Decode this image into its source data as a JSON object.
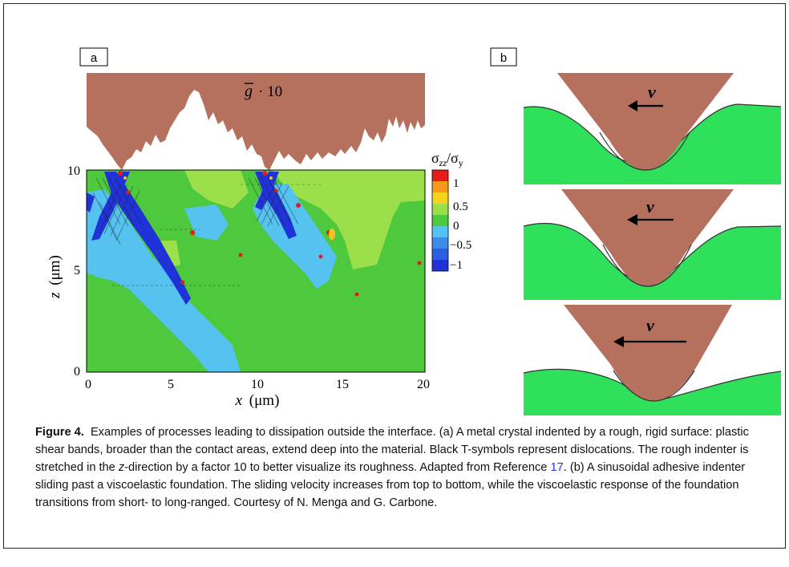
{
  "panel_a": {
    "label": "a",
    "indenter_label_g": "g",
    "indenter_label_rest": "· 10",
    "y_axis_var": "z",
    "y_axis_unit": "(μm)",
    "x_axis_var": "x",
    "x_axis_unit": "(μm)",
    "x_ticks": [
      "0",
      "5",
      "10",
      "15",
      "20"
    ],
    "y_ticks": [
      "10",
      "5",
      "0"
    ],
    "colorbar_title_main": "σ",
    "colorbar_title_sub1": "zz",
    "colorbar_title_slash": "/σ",
    "colorbar_title_sub2": "y",
    "colorbar_ticks": [
      "1",
      "0.5",
      "0",
      "−0.5",
      "−1"
    ],
    "colors": {
      "indenter": "#b5705e",
      "green": "#4ec83c",
      "light_green": "#9be04a",
      "light_blue": "#55c2f0",
      "dark_blue": "#1f33d8",
      "yellow": "#f7c21d",
      "red": "#e61c1c"
    }
  },
  "panel_b": {
    "label": "b",
    "velocity_symbol": "v",
    "colors": {
      "indenter": "#b5705e",
      "foundation": "#2fe05a"
    }
  },
  "caption": {
    "title": "Figure 4.",
    "text_1": "Examples of processes leading to dissipation outside the interface. (a) A metal crystal indented by a rough, rigid surface: plastic shear bands, broader than the contact areas, extend deep into the material. Black T-symbols represent dislocations. The rough indenter is stretched in the ",
    "z_italic": "z",
    "text_2": "-direction by a factor 10 to better visualize its roughness. Adapted from Reference ",
    "reference": "17",
    "text_3": ". (b) A sinusoidal adhesive indenter sliding past a viscoelastic foundation. The sliding velocity increases from top to bottom, while the viscoelastic response of the foundation transitions from short- to long-ranged. Courtesy of N. Menga and G. Carbone."
  }
}
